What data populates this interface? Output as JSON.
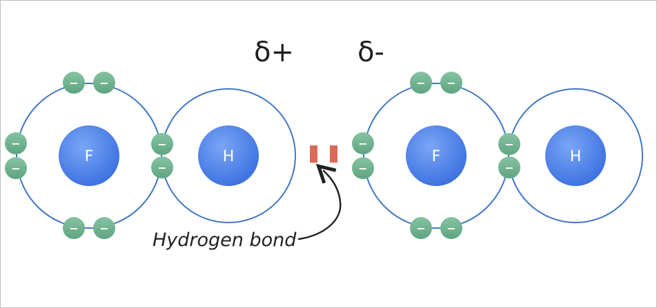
{
  "labels": {
    "delta_plus": "δ+",
    "delta_minus": "δ-",
    "hydrogen_bond": "Hydrogen bond"
  },
  "molecules": [
    {
      "fluorine": {
        "symbol": "F"
      },
      "hydrogen": {
        "symbol": "H"
      }
    },
    {
      "fluorine": {
        "symbol": "F"
      },
      "hydrogen": {
        "symbol": "H"
      }
    }
  ],
  "electron_sign": "−",
  "colors": {
    "shell": "#3f76c8",
    "nucleus": "#4f86ee",
    "electron": "#6fb38f",
    "bond": "#db6a56",
    "text": "#1f1f1f"
  }
}
